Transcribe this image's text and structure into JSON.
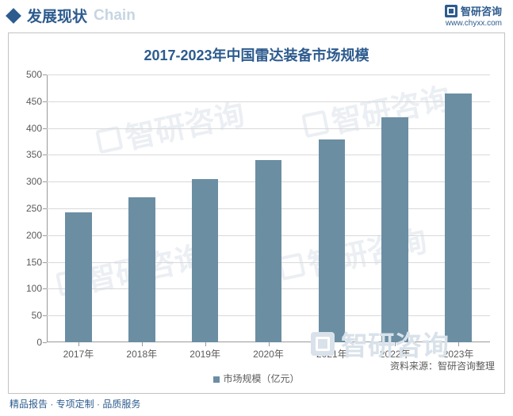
{
  "header": {
    "title_cn": "发展现状",
    "title_en": "Chain",
    "brand": "智研咨询",
    "url": "www.chyxx.com"
  },
  "chart": {
    "type": "bar",
    "title": "2017-2023年中国雷达装备市场规模",
    "categories": [
      "2017年",
      "2018年",
      "2019年",
      "2020年",
      "2021年",
      "2022年",
      "2023年"
    ],
    "values": [
      242,
      270,
      305,
      340,
      378,
      420,
      465
    ],
    "bar_color": "#6b8ea3",
    "background_color": "#ffffff",
    "grid_color": "#d9d9d9",
    "axis_color": "#9a9a9a",
    "text_color": "#5a5a5a",
    "title_color": "#2d5b8e",
    "title_fontsize": 18,
    "label_fontsize": 12,
    "ylim": [
      0,
      500
    ],
    "ytick_step": 50,
    "bar_width_ratio": 0.42,
    "legend_label": "市场规模（亿元）",
    "watermark_text": "智研咨询",
    "source_text": "资料来源：智研咨询整理"
  },
  "footer": {
    "text": "精品报告 · 专项定制 · 品质服务"
  }
}
